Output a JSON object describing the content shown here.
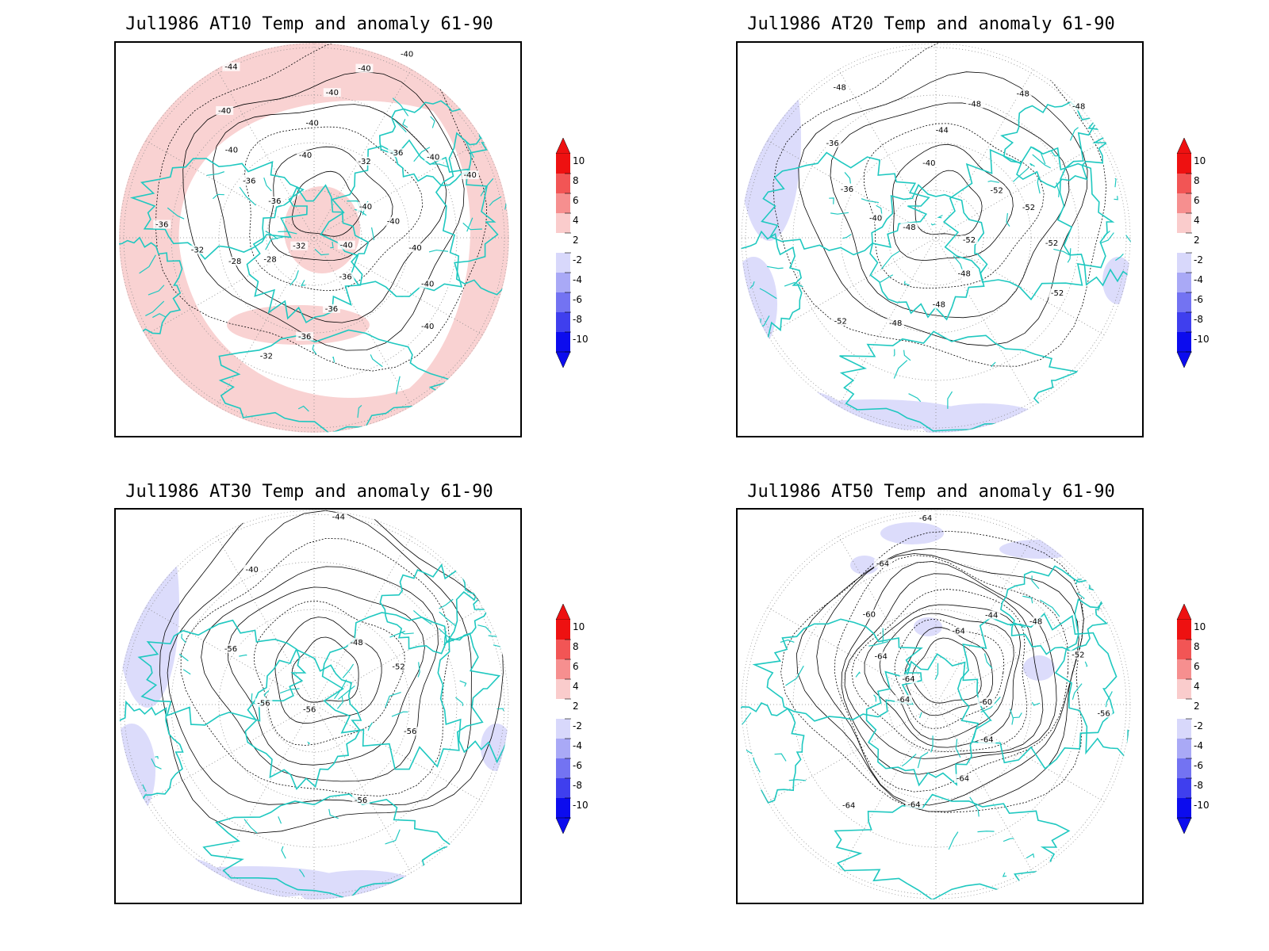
{
  "panels": [
    {
      "title": "Jul1986 AT10 Temp and anomaly 61-90",
      "fill": "#f9d2d2",
      "fill_mode": "warm-ring",
      "contour_labels": [
        "-40",
        "-40",
        "-40",
        "-40",
        "-40",
        "-40",
        "-36",
        "-36",
        "-36",
        "-32",
        "-32",
        "-28",
        "-28",
        "-32",
        "-36",
        "-36",
        "-36",
        "-40",
        "-40",
        "-44",
        "-40",
        "-40",
        "-40",
        "-40",
        "-40",
        "-32",
        "-36",
        "-40",
        "-40"
      ]
    },
    {
      "title": "Jul1986 AT20 Temp and anomaly 61-90",
      "fill": "#dcdcfb",
      "fill_mode": "cool-patches",
      "contour_labels": [
        "-52",
        "-48",
        "-48",
        "-48",
        "-52",
        "-48",
        "-40",
        "-36",
        "-36",
        "-48",
        "-40",
        "-44",
        "-48",
        "-48",
        "-48",
        "-52",
        "-52",
        "-52",
        "-52"
      ]
    },
    {
      "title": "Jul1986 AT30 Temp and anomaly 61-90",
      "fill": "#dcdcfb",
      "fill_mode": "cool-patches",
      "contour_labels": [
        "-56",
        "-56",
        "-56",
        "-40",
        "-44",
        "-48",
        "-52",
        "-56",
        "-56"
      ]
    },
    {
      "title": "Jul1986 AT50 Temp and anomaly 61-90",
      "fill": "#dcdcfb",
      "fill_mode": "cool-small",
      "contour_labels": [
        "-64",
        "-64",
        "-60",
        "-64",
        "-64",
        "-64",
        "-44",
        "-48",
        "-52",
        "-56",
        "-60",
        "-64",
        "-64",
        "-64",
        "-64",
        "-64"
      ]
    }
  ],
  "colorbar": {
    "labels": [
      "10",
      "8",
      "6",
      "4",
      "2",
      "-2",
      "-4",
      "-6",
      "-8",
      "-10"
    ],
    "colors": [
      "#ee1111",
      "#f25555",
      "#f68f8f",
      "#facccc",
      "#ffffff",
      "#d8d8fb",
      "#a9a9f6",
      "#7373f2",
      "#3f3fee",
      "#0c0cee"
    ]
  },
  "coast_color": "#1fc8c0"
}
